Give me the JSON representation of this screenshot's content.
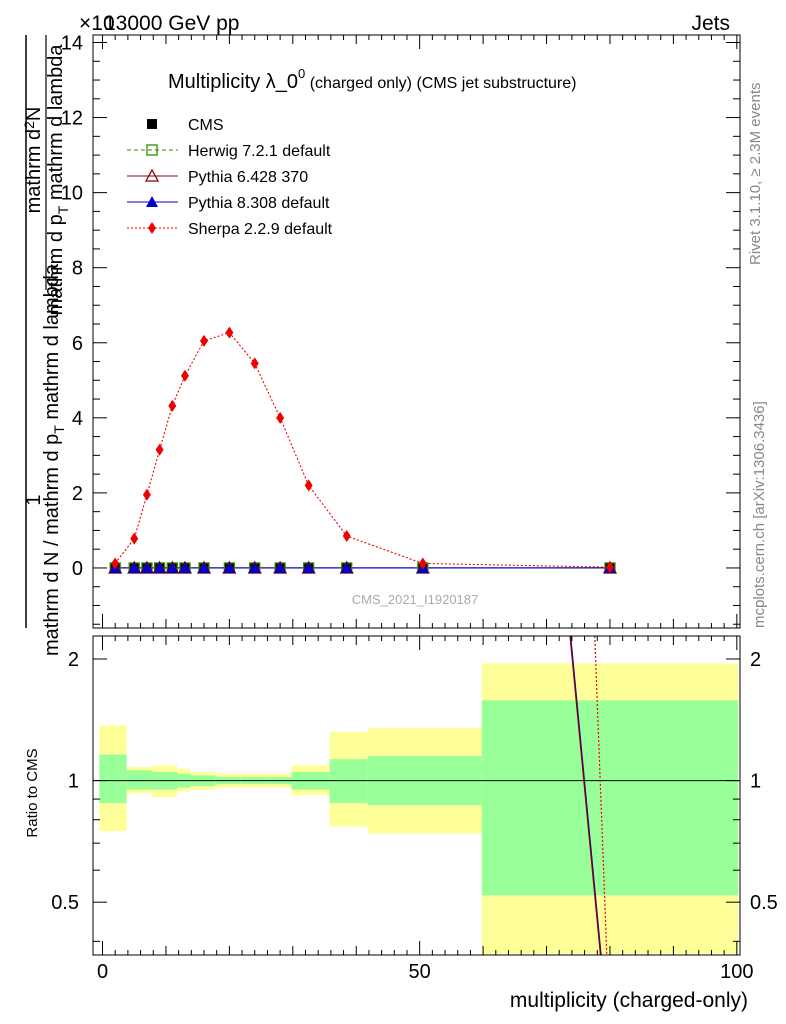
{
  "header": {
    "left_text": "13000 GeV pp",
    "right_text": "Jets",
    "exponent_text": "×10"
  },
  "side_labels": {
    "rivet": "Rivet 3.1.10, ≥ 2.3M events",
    "mcplots": "mcplots.cern.ch [arXiv:1306.3436]"
  },
  "chart_data": [
    {
      "type": "line",
      "title": "Multiplicity λ_0",
      "title_sup": "0",
      "title_suffix": " (charged only) (CMS jet substructure)",
      "ylabel_numerator": "1",
      "ylabel_denominator": "mathrm d N / mathrm d p",
      "ylabel_denominator_sub": "T",
      "ylabel_denominator_rest": "mathrm d lambda",
      "ylabel_numerator2": "mathrm d",
      "ylabel_numerator2_sup": "2",
      "ylabel_numerator2_rest": "N",
      "ylabel_denominator2": "mathrm d p",
      "ylabel_denominator2_sub": "T",
      "ylabel_denominator2_rest": "mathrm d lambda",
      "ylim": [
        -1.6,
        14.2
      ],
      "xlim": [
        -1.5,
        100.5
      ],
      "yticks": [
        0,
        2,
        4,
        6,
        8,
        10,
        12,
        14
      ],
      "watermark": "CMS_2021_I1920187",
      "legend_position": "top-left",
      "x": [
        2,
        5,
        7,
        9,
        11,
        13,
        16,
        20,
        24,
        28,
        32.5,
        38.5,
        50.5,
        80
      ],
      "series": [
        {
          "name": "CMS",
          "color": "#000000",
          "marker": "square",
          "values": [
            0,
            0,
            0,
            0,
            0,
            0,
            0,
            0,
            0,
            0,
            0,
            0,
            0,
            0
          ]
        },
        {
          "name": "Herwig 7.2.1 default",
          "color": "#2e8b00",
          "marker": "open-square",
          "line": "dashed",
          "values": [
            0,
            0,
            0,
            0,
            0,
            0,
            0,
            0,
            0,
            0,
            0,
            0,
            0,
            0
          ]
        },
        {
          "name": "Pythia 6.428 370",
          "color": "#8b0000",
          "marker": "open-triangle",
          "line": "solid",
          "values": [
            0,
            0,
            0,
            0,
            0,
            0,
            0,
            0,
            0,
            0,
            0,
            0,
            0,
            0
          ]
        },
        {
          "name": "Pythia 8.308 default",
          "color": "#0000cc",
          "marker": "triangle",
          "line": "solid",
          "values": [
            0,
            0,
            0,
            0,
            0,
            0,
            0,
            0,
            0,
            0,
            0,
            0,
            0,
            0
          ]
        },
        {
          "name": "Sherpa 2.2.9 default",
          "color": "#ee0000",
          "marker": "diamond",
          "line": "dotted",
          "values": [
            0.12,
            0.78,
            1.95,
            3.15,
            4.32,
            5.12,
            6.05,
            6.27,
            5.45,
            4.0,
            2.2,
            0.85,
            0.12,
            0.02
          ]
        }
      ]
    },
    {
      "type": "area",
      "ylabel": "Ratio to CMS",
      "xlabel": "multiplicity (charged-only)",
      "ylim": [
        0.37,
        2.28
      ],
      "yticks": [
        0.5,
        1,
        2
      ],
      "xticks": [
        0,
        50,
        100
      ],
      "bands": [
        {
          "x0": -0.5,
          "x1": 3.8,
          "y_lo": 0.75,
          "y_hi": 1.37,
          "g_lo": 0.88,
          "g_hi": 1.16
        },
        {
          "x0": 3.8,
          "x1": 7.8,
          "y_lo": 0.93,
          "y_hi": 1.08,
          "g_lo": 0.95,
          "g_hi": 1.06
        },
        {
          "x0": 7.8,
          "x1": 11.8,
          "y_lo": 0.91,
          "y_hi": 1.09,
          "g_lo": 0.95,
          "g_hi": 1.05
        },
        {
          "x0": 11.8,
          "x1": 13.8,
          "y_lo": 0.94,
          "y_hi": 1.07,
          "g_lo": 0.96,
          "g_hi": 1.04
        },
        {
          "x0": 13.8,
          "x1": 17.8,
          "y_lo": 0.95,
          "y_hi": 1.05,
          "g_lo": 0.97,
          "g_hi": 1.03
        },
        {
          "x0": 17.8,
          "x1": 21.8,
          "y_lo": 0.96,
          "y_hi": 1.04,
          "g_lo": 0.98,
          "g_hi": 1.02
        },
        {
          "x0": 21.8,
          "x1": 25.8,
          "y_lo": 0.96,
          "y_hi": 1.04,
          "g_lo": 0.98,
          "g_hi": 1.02
        },
        {
          "x0": 25.8,
          "x1": 29.8,
          "y_lo": 0.96,
          "y_hi": 1.04,
          "g_lo": 0.98,
          "g_hi": 1.02
        },
        {
          "x0": 29.8,
          "x1": 35.8,
          "y_lo": 0.92,
          "y_hi": 1.09,
          "g_lo": 0.95,
          "g_hi": 1.05
        },
        {
          "x0": 35.8,
          "x1": 41.8,
          "y_lo": 0.77,
          "y_hi": 1.32,
          "g_lo": 0.88,
          "g_hi": 1.13
        },
        {
          "x0": 41.8,
          "x1": 59.8,
          "y_lo": 0.74,
          "y_hi": 1.35,
          "g_lo": 0.87,
          "g_hi": 1.15
        },
        {
          "x0": 59.8,
          "x1": 100.2,
          "y_lo": 0.3,
          "y_hi": 1.95,
          "g_lo": 0.52,
          "g_hi": 1.58
        }
      ],
      "lines": [
        {
          "name": "Pythia 8.308 default",
          "color": "#0000cc",
          "dash": "none",
          "points": [
            [
              73.8,
              2.28
            ],
            [
              78.6,
              0.37
            ]
          ]
        },
        {
          "name": "Pythia 6.428 370",
          "color": "#8b0000",
          "dash": "none",
          "points": [
            [
              73.7,
              2.28
            ],
            [
              78.5,
              0.37
            ]
          ]
        },
        {
          "name": "Sherpa 2.2.9 default",
          "color": "#ee0000",
          "dash": "2,2",
          "points": [
            [
              77.6,
              2.28
            ],
            [
              79.5,
              0.37
            ]
          ]
        }
      ]
    }
  ]
}
